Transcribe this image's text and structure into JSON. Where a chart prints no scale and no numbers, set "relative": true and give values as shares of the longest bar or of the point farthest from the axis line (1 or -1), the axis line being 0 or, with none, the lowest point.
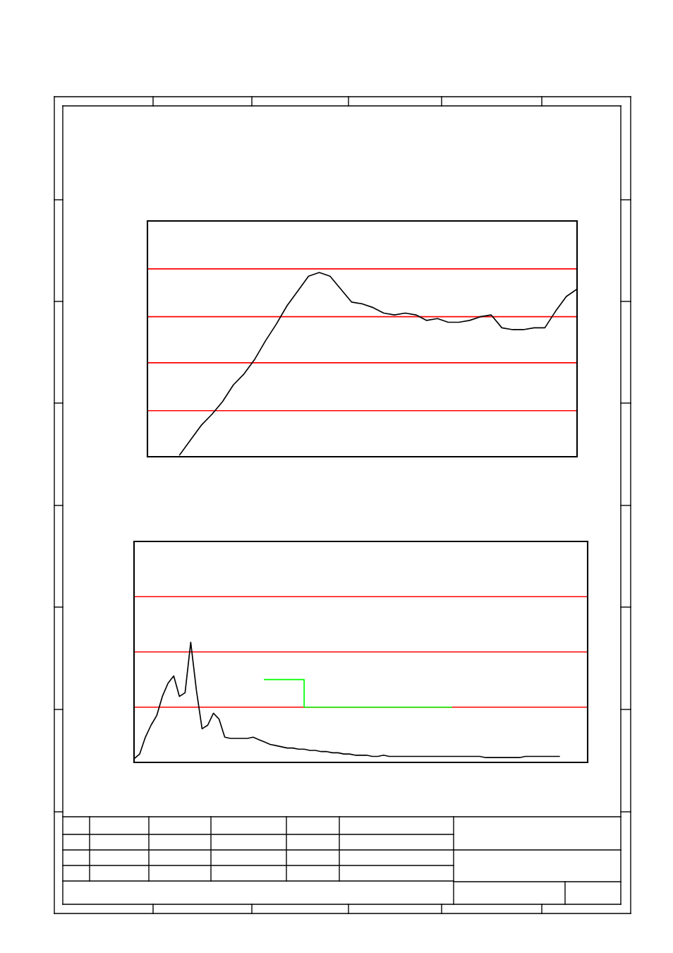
{
  "chart_data": [
    {
      "type": "line",
      "relative": true,
      "categories": [
        null,
        null,
        null,
        null,
        null,
        null,
        null,
        null,
        null,
        null,
        null,
        null,
        null,
        null,
        null,
        null,
        null,
        null,
        null,
        null,
        null,
        null,
        null,
        null,
        null,
        null,
        null,
        null,
        null,
        null,
        null,
        null,
        null,
        null,
        null,
        null,
        null,
        null,
        null,
        null,
        null
      ],
      "series": [
        {
          "color": "#000000",
          "values": [
            null,
            null,
            null,
            0.01,
            0.09,
            0.17,
            0.23,
            0.3,
            0.39,
            0.45,
            0.53,
            0.63,
            0.72,
            0.82,
            0.9,
            0.98,
            1.0,
            0.98,
            0.91,
            0.84,
            0.83,
            0.81,
            0.78,
            0.77,
            0.78,
            0.77,
            0.74,
            0.75,
            0.73,
            0.73,
            0.74,
            0.76,
            0.77,
            0.7,
            0.69,
            0.69,
            0.7,
            0.7,
            0.79,
            0.87,
            0.91
          ]
        }
      ],
      "ref_lines": [
        {
          "axis": "y",
          "value": 0.25,
          "color": "#ff0000"
        },
        {
          "axis": "y",
          "value": 0.51,
          "color": "#ff0000"
        },
        {
          "axis": "y",
          "value": 0.76,
          "color": "#ff0000"
        },
        {
          "axis": "y",
          "value": 1.02,
          "color": "#ff0000"
        }
      ]
    },
    {
      "type": "line",
      "relative": true,
      "categories": [
        null,
        null,
        null,
        null,
        null,
        null,
        null,
        null,
        null,
        null,
        null,
        null,
        null,
        null,
        null,
        null,
        null,
        null,
        null,
        null,
        null,
        null,
        null,
        null,
        null,
        null,
        null,
        null,
        null,
        null,
        null,
        null,
        null,
        null,
        null,
        null,
        null,
        null,
        null,
        null,
        null,
        null,
        null,
        null,
        null,
        null,
        null,
        null,
        null,
        null,
        null,
        null,
        null,
        null,
        null,
        null,
        null,
        null,
        null,
        null,
        null,
        null,
        null,
        null,
        null,
        null,
        null,
        null,
        null,
        null,
        null,
        null,
        null,
        null,
        null,
        null,
        null,
        null,
        null,
        null,
        null
      ],
      "series": [
        {
          "color": "#000000",
          "values": [
            0.03,
            0.07,
            0.21,
            0.31,
            0.39,
            0.55,
            0.66,
            0.72,
            0.55,
            0.58,
            1.0,
            0.6,
            0.28,
            0.31,
            0.41,
            0.36,
            0.21,
            0.2,
            0.2,
            0.2,
            0.2,
            0.21,
            0.19,
            0.17,
            0.15,
            0.14,
            0.13,
            0.12,
            0.12,
            0.11,
            0.11,
            0.1,
            0.1,
            0.09,
            0.09,
            0.08,
            0.08,
            0.07,
            0.07,
            0.06,
            0.06,
            0.06,
            0.05,
            0.05,
            0.06,
            0.05,
            0.05,
            0.05,
            0.05,
            0.05,
            0.05,
            0.05,
            0.05,
            0.05,
            0.05,
            0.05,
            0.05,
            0.05,
            0.05,
            0.05,
            0.05,
            0.05,
            0.04,
            0.04,
            0.04,
            0.04,
            0.04,
            0.04,
            0.04,
            0.05,
            0.05,
            0.05,
            0.05,
            0.05,
            0.05,
            0.05,
            null,
            null,
            null,
            null,
            null
          ]
        },
        {
          "type": "step",
          "color": "#00ff00",
          "values": [
            null,
            null,
            null,
            null,
            null,
            null,
            null,
            null,
            null,
            null,
            null,
            null,
            null,
            null,
            null,
            null,
            null,
            null,
            null,
            null,
            null,
            null,
            null,
            0.69,
            0.69,
            0.69,
            0.69,
            0.69,
            0.69,
            0.69,
            0.46,
            0.46,
            0.46,
            0.46,
            0.46,
            0.46,
            0.46,
            0.46,
            0.46,
            0.46,
            0.46,
            0.46,
            0.46,
            0.46,
            0.46,
            0.46,
            0.46,
            0.46,
            0.46,
            0.46,
            0.46,
            0.46,
            0.46,
            0.46,
            0.46,
            0.46,
            0.46,
            null,
            null,
            null,
            null,
            null,
            null,
            null,
            null,
            null,
            null,
            null,
            null,
            null,
            null,
            null,
            null,
            null,
            null,
            null,
            null,
            null,
            null,
            null,
            null
          ]
        }
      ],
      "ref_lines": [
        {
          "axis": "y",
          "value": 0.46,
          "color": "#ff0000"
        },
        {
          "axis": "y",
          "value": 0.92,
          "color": "#ff0000"
        },
        {
          "axis": "y",
          "value": 1.38,
          "color": "#ff0000"
        }
      ]
    }
  ]
}
